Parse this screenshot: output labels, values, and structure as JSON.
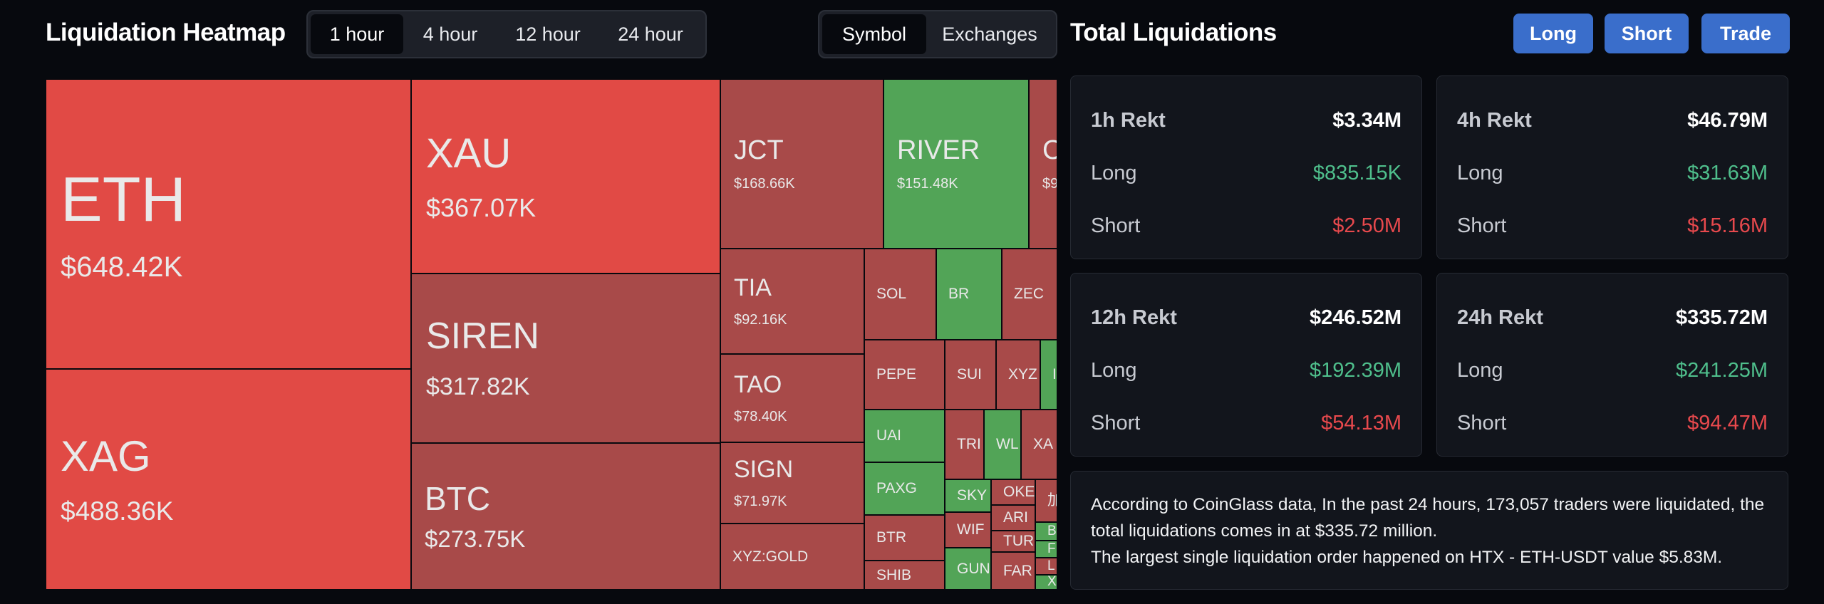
{
  "heatmap": {
    "title": "Liquidation Heatmap",
    "time_tabs": [
      "1 hour",
      "4 hour",
      "12 hour",
      "24 hour"
    ],
    "active_time_tab": "1 hour",
    "view_tabs": [
      "Symbol",
      "Exchanges"
    ],
    "active_view_tab": "Symbol"
  },
  "colors": {
    "bright_red": "#e14a45",
    "dark_red": "#a84a49",
    "green": "#52a457",
    "accent_blue": "#3a6ecb"
  },
  "tiles": [
    {
      "symbol": "ETH",
      "value": "$648.42K",
      "color": "bright_red"
    },
    {
      "symbol": "XAG",
      "value": "$488.36K",
      "color": "bright_red"
    },
    {
      "symbol": "XAU",
      "value": "$367.07K",
      "color": "bright_red"
    },
    {
      "symbol": "SIREN",
      "value": "$317.82K",
      "color": "dark_red"
    },
    {
      "symbol": "BTC",
      "value": "$273.75K",
      "color": "dark_red"
    },
    {
      "symbol": "JCT",
      "value": "$168.66K",
      "color": "dark_red"
    },
    {
      "symbol": "RIVER",
      "value": "$151.48K",
      "color": "green"
    },
    {
      "symbol": "C",
      "value": "$9",
      "color": "dark_red"
    },
    {
      "symbol": "TIA",
      "value": "$92.16K",
      "color": "dark_red"
    },
    {
      "symbol": "TAO",
      "value": "$78.40K",
      "color": "dark_red"
    },
    {
      "symbol": "SIGN",
      "value": "$71.97K",
      "color": "dark_red"
    },
    {
      "symbol": "XYZ:GOLD",
      "value": "",
      "color": "dark_red"
    },
    {
      "symbol": "SOL",
      "value": "",
      "color": "dark_red"
    },
    {
      "symbol": "BR",
      "value": "",
      "color": "green"
    },
    {
      "symbol": "ZEC",
      "value": "",
      "color": "dark_red"
    },
    {
      "symbol": "PEPE",
      "value": "",
      "color": "dark_red"
    },
    {
      "symbol": "SUI",
      "value": "",
      "color": "dark_red"
    },
    {
      "symbol": "XYZ",
      "value": "",
      "color": "dark_red"
    },
    {
      "symbol": "I",
      "value": "",
      "color": "green"
    },
    {
      "symbol": "UAI",
      "value": "",
      "color": "green"
    },
    {
      "symbol": "TRI",
      "value": "",
      "color": "dark_red"
    },
    {
      "symbol": "WL",
      "value": "",
      "color": "green"
    },
    {
      "symbol": "XA",
      "value": "",
      "color": "dark_red"
    },
    {
      "symbol": "PAXG",
      "value": "",
      "color": "green"
    },
    {
      "symbol": "SKY",
      "value": "",
      "color": "green"
    },
    {
      "symbol": "OKE",
      "value": "",
      "color": "dark_red"
    },
    {
      "symbol": "加",
      "value": "",
      "color": "dark_red"
    },
    {
      "symbol": "BTR",
      "value": "",
      "color": "dark_red"
    },
    {
      "symbol": "ARI",
      "value": "",
      "color": "dark_red"
    },
    {
      "symbol": "B",
      "value": "",
      "color": "green"
    },
    {
      "symbol": "WIF",
      "value": "",
      "color": "dark_red"
    },
    {
      "symbol": "TUR",
      "value": "",
      "color": "dark_red"
    },
    {
      "symbol": "F",
      "value": "",
      "color": "green"
    },
    {
      "symbol": "SHIB",
      "value": "",
      "color": "dark_red"
    },
    {
      "symbol": "GUN",
      "value": "",
      "color": "green"
    },
    {
      "symbol": "FAR",
      "value": "",
      "color": "dark_red"
    },
    {
      "symbol": "L",
      "value": "",
      "color": "dark_red"
    },
    {
      "symbol": "X",
      "value": "",
      "color": "green"
    }
  ],
  "totals": {
    "title": "Total Liquidations",
    "buttons": [
      "Long",
      "Short",
      "Trade"
    ],
    "cards": [
      {
        "label": "1h Rekt",
        "total": "$3.34M",
        "long_label": "Long",
        "long": "$835.15K",
        "short_label": "Short",
        "short": "$2.50M"
      },
      {
        "label": "4h Rekt",
        "total": "$46.79M",
        "long_label": "Long",
        "long": "$31.63M",
        "short_label": "Short",
        "short": "$15.16M"
      },
      {
        "label": "12h Rekt",
        "total": "$246.52M",
        "long_label": "Long",
        "long": "$192.39M",
        "short_label": "Short",
        "short": "$54.13M"
      },
      {
        "label": "24h Rekt",
        "total": "$335.72M",
        "long_label": "Long",
        "long": "$241.25M",
        "short_label": "Short",
        "short": "$94.47M"
      }
    ],
    "summary_line1": "According to CoinGlass data, In the past 24 hours, 173,057 traders were liquidated, the total liquidations comes in at $335.72 million.",
    "summary_line2": "The largest single liquidation order happened on HTX - ETH-USDT value $5.83M."
  }
}
